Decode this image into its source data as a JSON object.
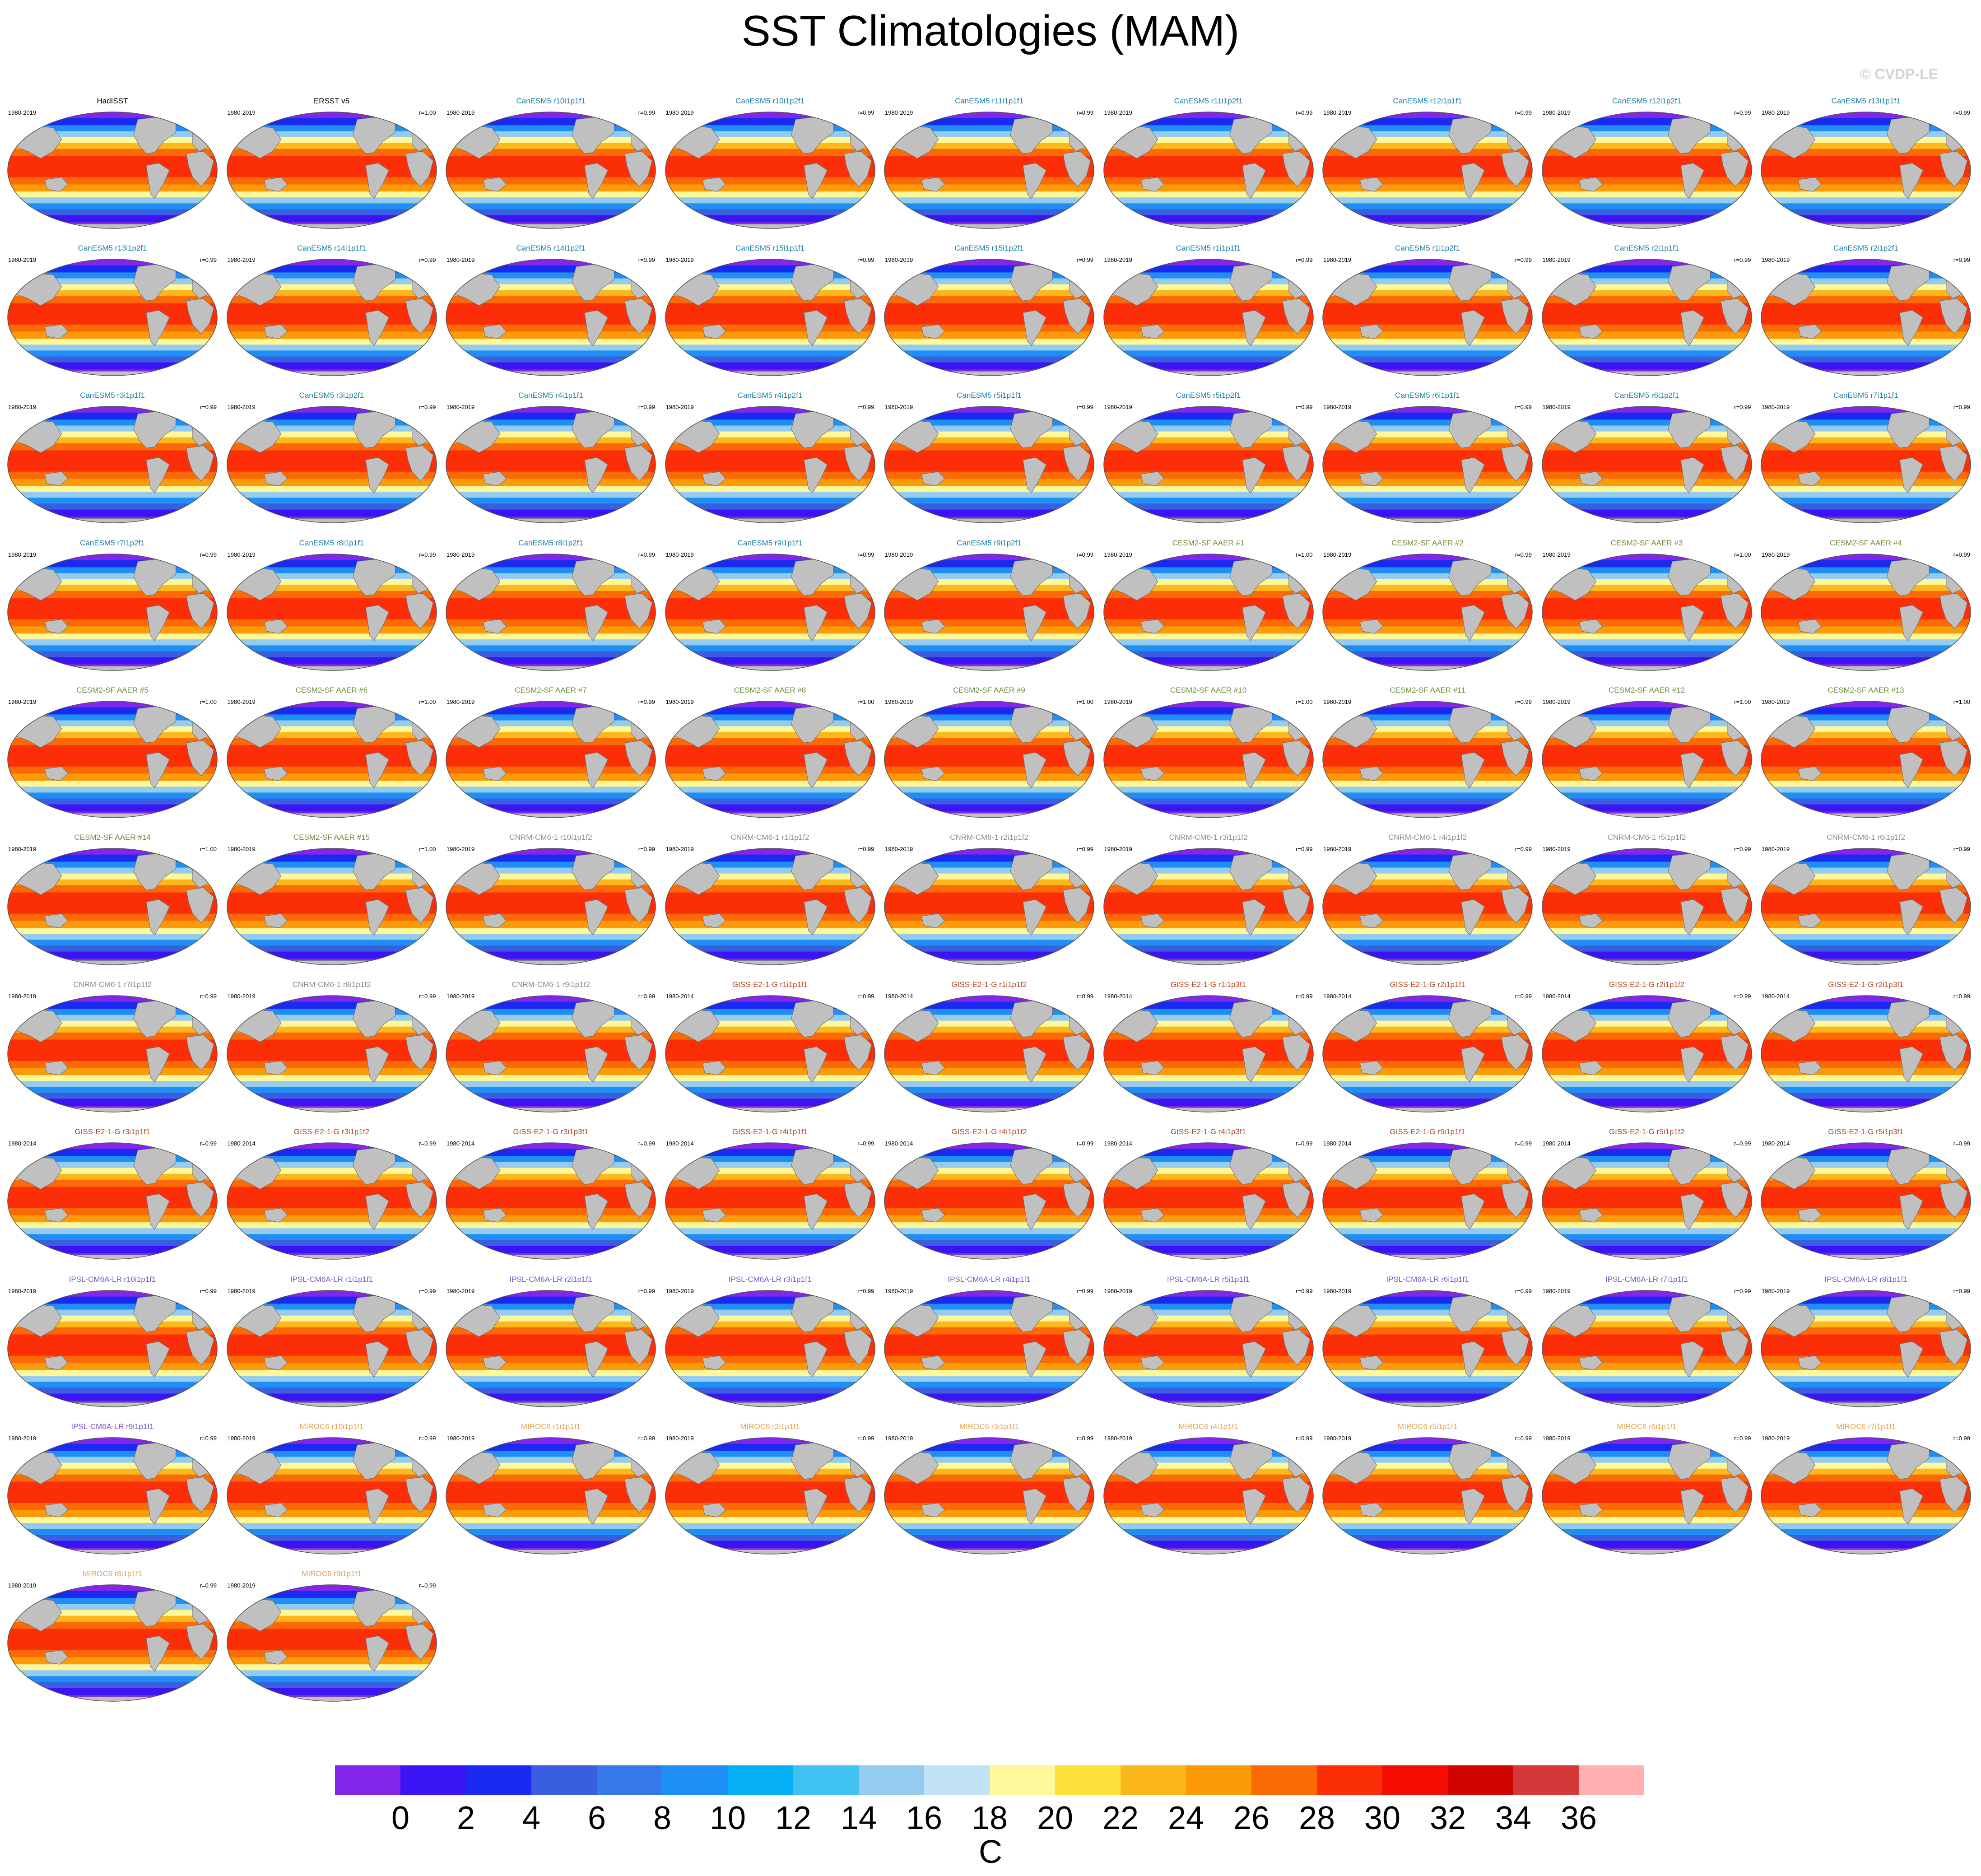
{
  "title": "SST Climatologies (MAM)",
  "watermark": "© CVDP-LE",
  "colors": {
    "CanESM5": "#1a7fa8",
    "CESM2-SF AAER": "#6b8e3a",
    "CNRM-CM6-1": "#8c8c8c",
    "GISS-E2-1-G": "#b24a24",
    "IPSL-CM6A-LR": "#7a55c8",
    "MIROC6": "#e3a35a",
    "obs": "#000000",
    "land": "#c0c0c0"
  },
  "chart_data": {
    "type": "heatmap",
    "variable": "SST",
    "season": "MAM",
    "colorbar": {
      "unit": "C",
      "levels": [
        0,
        2,
        4,
        6,
        8,
        10,
        12,
        14,
        16,
        18,
        20,
        22,
        24,
        26,
        28,
        30,
        32,
        34,
        36
      ],
      "tick_labels": [
        "0",
        "2",
        "4",
        "6",
        "8",
        "10",
        "12",
        "14",
        "16",
        "18",
        "20",
        "22",
        "24",
        "26",
        "28",
        "30",
        "32",
        "34",
        "36"
      ],
      "colors": [
        "#8226ea",
        "#3b14f5",
        "#1a2af0",
        "#3a5ee0",
        "#3579e8",
        "#1e90f5",
        "#05b0f5",
        "#40c2f2",
        "#94cbee",
        "#c2e3f5",
        "#fff89a",
        "#fde03a",
        "#fcb81a",
        "#fc9a08",
        "#fc6a06",
        "#fc2e08",
        "#f50c00",
        "#d20400",
        "#d53838",
        "#ffb0b0"
      ]
    },
    "panels": [
      {
        "name": "HadISST",
        "period": "1980-2019",
        "r": "",
        "group": "obs"
      },
      {
        "name": "ERSST v5",
        "period": "1980-2019",
        "r": "r=1.00",
        "group": "obs"
      },
      {
        "name": "CanESM5 r10i1p1f1",
        "period": "1980-2019",
        "r": "r=0.99",
        "group": "CanESM5"
      },
      {
        "name": "CanESM5 r10i1p2f1",
        "period": "1980-2019",
        "r": "r=0.99",
        "group": "CanESM5"
      },
      {
        "name": "CanESM5 r11i1p1f1",
        "period": "1980-2019",
        "r": "r=0.99",
        "group": "CanESM5"
      },
      {
        "name": "CanESM5 r11i1p2f1",
        "period": "1980-2019",
        "r": "r=0.99",
        "group": "CanESM5"
      },
      {
        "name": "CanESM5 r12i1p1f1",
        "period": "1980-2019",
        "r": "r=0.99",
        "group": "CanESM5"
      },
      {
        "name": "CanESM5 r12i1p2f1",
        "period": "1980-2019",
        "r": "r=0.99",
        "group": "CanESM5"
      },
      {
        "name": "CanESM5 r13i1p1f1",
        "period": "1980-2019",
        "r": "r=0.99",
        "group": "CanESM5"
      },
      {
        "name": "CanESM5 r13i1p2f1",
        "period": "1980-2019",
        "r": "r=0.99",
        "group": "CanESM5"
      },
      {
        "name": "CanESM5 r14i1p1f1",
        "period": "1980-2019",
        "r": "r=0.99",
        "group": "CanESM5"
      },
      {
        "name": "CanESM5 r14i1p2f1",
        "period": "1980-2019",
        "r": "r=0.99",
        "group": "CanESM5"
      },
      {
        "name": "CanESM5 r15i1p1f1",
        "period": "1980-2019",
        "r": "r=0.99",
        "group": "CanESM5"
      },
      {
        "name": "CanESM5 r15i1p2f1",
        "period": "1980-2019",
        "r": "r=0.99",
        "group": "CanESM5"
      },
      {
        "name": "CanESM5 r1i1p1f1",
        "period": "1980-2019",
        "r": "r=0.99",
        "group": "CanESM5"
      },
      {
        "name": "CanESM5 r1i1p2f1",
        "period": "1980-2019",
        "r": "r=0.99",
        "group": "CanESM5"
      },
      {
        "name": "CanESM5 r2i1p1f1",
        "period": "1980-2019",
        "r": "r=0.99",
        "group": "CanESM5"
      },
      {
        "name": "CanESM5 r2i1p2f1",
        "period": "1980-2019",
        "r": "r=0.99",
        "group": "CanESM5"
      },
      {
        "name": "CanESM5 r3i1p1f1",
        "period": "1980-2019",
        "r": "r=0.99",
        "group": "CanESM5"
      },
      {
        "name": "CanESM5 r3i1p2f1",
        "period": "1980-2019",
        "r": "r=0.99",
        "group": "CanESM5"
      },
      {
        "name": "CanESM5 r4i1p1f1",
        "period": "1980-2019",
        "r": "r=0.99",
        "group": "CanESM5"
      },
      {
        "name": "CanESM5 r4i1p2f1",
        "period": "1980-2019",
        "r": "r=0.99",
        "group": "CanESM5"
      },
      {
        "name": "CanESM5 r5i1p1f1",
        "period": "1980-2019",
        "r": "r=0.99",
        "group": "CanESM5"
      },
      {
        "name": "CanESM5 r5i1p2f1",
        "period": "1980-2019",
        "r": "r=0.99",
        "group": "CanESM5"
      },
      {
        "name": "CanESM5 r6i1p1f1",
        "period": "1980-2019",
        "r": "r=0.99",
        "group": "CanESM5"
      },
      {
        "name": "CanESM5 r6i1p2f1",
        "period": "1980-2019",
        "r": "r=0.99",
        "group": "CanESM5"
      },
      {
        "name": "CanESM5 r7i1p1f1",
        "period": "1980-2019",
        "r": "r=0.99",
        "group": "CanESM5"
      },
      {
        "name": "CanESM5 r7i1p2f1",
        "period": "1980-2019",
        "r": "r=0.99",
        "group": "CanESM5"
      },
      {
        "name": "CanESM5 r8i1p1f1",
        "period": "1980-2019",
        "r": "r=0.99",
        "group": "CanESM5"
      },
      {
        "name": "CanESM5 r8i1p2f1",
        "period": "1980-2019",
        "r": "r=0.99",
        "group": "CanESM5"
      },
      {
        "name": "CanESM5 r9i1p1f1",
        "period": "1980-2019",
        "r": "r=0.99",
        "group": "CanESM5"
      },
      {
        "name": "CanESM5 r9i1p2f1",
        "period": "1980-2019",
        "r": "r=0.99",
        "group": "CanESM5"
      },
      {
        "name": "CESM2-SF AAER #1",
        "period": "1980-2019",
        "r": "r=1.00",
        "group": "CESM2-SF AAER"
      },
      {
        "name": "CESM2-SF AAER #2",
        "period": "1980-2019",
        "r": "r=0.99",
        "group": "CESM2-SF AAER"
      },
      {
        "name": "CESM2-SF AAER #3",
        "period": "1980-2019",
        "r": "r=1.00",
        "group": "CESM2-SF AAER"
      },
      {
        "name": "CESM2-SF AAER #4",
        "period": "1980-2019",
        "r": "r=0.99",
        "group": "CESM2-SF AAER"
      },
      {
        "name": "CESM2-SF AAER #5",
        "period": "1980-2019",
        "r": "r=1.00",
        "group": "CESM2-SF AAER"
      },
      {
        "name": "CESM2-SF AAER #6",
        "period": "1980-2019",
        "r": "r=1.00",
        "group": "CESM2-SF AAER"
      },
      {
        "name": "CESM2-SF AAER #7",
        "period": "1980-2019",
        "r": "r=0.99",
        "group": "CESM2-SF AAER"
      },
      {
        "name": "CESM2-SF AAER #8",
        "period": "1980-2019",
        "r": "r=1.00",
        "group": "CESM2-SF AAER"
      },
      {
        "name": "CESM2-SF AAER #9",
        "period": "1980-2019",
        "r": "r=1.00",
        "group": "CESM2-SF AAER"
      },
      {
        "name": "CESM2-SF AAER #10",
        "period": "1980-2019",
        "r": "r=1.00",
        "group": "CESM2-SF AAER"
      },
      {
        "name": "CESM2-SF AAER #11",
        "period": "1980-2019",
        "r": "r=0.99",
        "group": "CESM2-SF AAER"
      },
      {
        "name": "CESM2-SF AAER #12",
        "period": "1980-2019",
        "r": "r=1.00",
        "group": "CESM2-SF AAER"
      },
      {
        "name": "CESM2-SF AAER #13",
        "period": "1980-2019",
        "r": "r=1.00",
        "group": "CESM2-SF AAER"
      },
      {
        "name": "CESM2-SF AAER #14",
        "period": "1980-2019",
        "r": "r=1.00",
        "group": "CESM2-SF AAER"
      },
      {
        "name": "CESM2-SF AAER #15",
        "period": "1980-2019",
        "r": "r=1.00",
        "group": "CESM2-SF AAER"
      },
      {
        "name": "CNRM-CM6-1 r10i1p1f2",
        "period": "1980-2019",
        "r": "r=0.99",
        "group": "CNRM-CM6-1"
      },
      {
        "name": "CNRM-CM6-1 r1i1p1f2",
        "period": "1980-2019",
        "r": "r=0.99",
        "group": "CNRM-CM6-1"
      },
      {
        "name": "CNRM-CM6-1 r2i1p1f2",
        "period": "1980-2019",
        "r": "r=0.99",
        "group": "CNRM-CM6-1"
      },
      {
        "name": "CNRM-CM6-1 r3i1p1f2",
        "period": "1980-2019",
        "r": "r=0.99",
        "group": "CNRM-CM6-1"
      },
      {
        "name": "CNRM-CM6-1 r4i1p1f2",
        "period": "1980-2019",
        "r": "r=0.99",
        "group": "CNRM-CM6-1"
      },
      {
        "name": "CNRM-CM6-1 r5i1p1f2",
        "period": "1980-2019",
        "r": "r=0.99",
        "group": "CNRM-CM6-1"
      },
      {
        "name": "CNRM-CM6-1 r6i1p1f2",
        "period": "1980-2019",
        "r": "r=0.99",
        "group": "CNRM-CM6-1"
      },
      {
        "name": "CNRM-CM6-1 r7i1p1f2",
        "period": "1980-2019",
        "r": "r=0.99",
        "group": "CNRM-CM6-1"
      },
      {
        "name": "CNRM-CM6-1 r8i1p1f2",
        "period": "1980-2019",
        "r": "r=0.99",
        "group": "CNRM-CM6-1"
      },
      {
        "name": "CNRM-CM6-1 r9i1p1f2",
        "period": "1980-2019",
        "r": "r=0.99",
        "group": "CNRM-CM6-1"
      },
      {
        "name": "GISS-E2-1-G r1i1p1f1",
        "period": "1980-2014",
        "r": "r=0.99",
        "group": "GISS-E2-1-G"
      },
      {
        "name": "GISS-E2-1-G r1i1p1f2",
        "period": "1980-2014",
        "r": "r=0.99",
        "group": "GISS-E2-1-G"
      },
      {
        "name": "GISS-E2-1-G r1i1p3f1",
        "period": "1980-2014",
        "r": "r=0.99",
        "group": "GISS-E2-1-G"
      },
      {
        "name": "GISS-E2-1-G r2i1p1f1",
        "period": "1980-2014",
        "r": "r=0.99",
        "group": "GISS-E2-1-G"
      },
      {
        "name": "GISS-E2-1-G r2i1p1f2",
        "period": "1980-2014",
        "r": "r=0.99",
        "group": "GISS-E2-1-G"
      },
      {
        "name": "GISS-E2-1-G r2i1p3f1",
        "period": "1980-2014",
        "r": "r=0.99",
        "group": "GISS-E2-1-G"
      },
      {
        "name": "GISS-E2-1-G r3i1p1f1",
        "period": "1980-2014",
        "r": "r=0.99",
        "group": "GISS-E2-1-G"
      },
      {
        "name": "GISS-E2-1-G r3i1p1f2",
        "period": "1980-2014",
        "r": "r=0.99",
        "group": "GISS-E2-1-G"
      },
      {
        "name": "GISS-E2-1-G r3i1p3f1",
        "period": "1980-2014",
        "r": "r=0.99",
        "group": "GISS-E2-1-G"
      },
      {
        "name": "GISS-E2-1-G r4i1p1f1",
        "period": "1980-2014",
        "r": "r=0.99",
        "group": "GISS-E2-1-G"
      },
      {
        "name": "GISS-E2-1-G r4i1p1f2",
        "period": "1980-2014",
        "r": "r=0.99",
        "group": "GISS-E2-1-G"
      },
      {
        "name": "GISS-E2-1-G r4i1p3f1",
        "period": "1980-2014",
        "r": "r=0.99",
        "group": "GISS-E2-1-G"
      },
      {
        "name": "GISS-E2-1-G r5i1p1f1",
        "period": "1980-2014",
        "r": "r=0.99",
        "group": "GISS-E2-1-G"
      },
      {
        "name": "GISS-E2-1-G r5i1p1f2",
        "period": "1980-2014",
        "r": "r=0.99",
        "group": "GISS-E2-1-G"
      },
      {
        "name": "GISS-E2-1-G r5i1p3f1",
        "period": "1980-2014",
        "r": "r=0.99",
        "group": "GISS-E2-1-G"
      },
      {
        "name": "IPSL-CM6A-LR r10i1p1f1",
        "period": "1980-2019",
        "r": "r=0.99",
        "group": "IPSL-CM6A-LR"
      },
      {
        "name": "IPSL-CM6A-LR r1i1p1f1",
        "period": "1980-2019",
        "r": "r=0.99",
        "group": "IPSL-CM6A-LR"
      },
      {
        "name": "IPSL-CM6A-LR r2i1p1f1",
        "period": "1980-2019",
        "r": "r=0.99",
        "group": "IPSL-CM6A-LR"
      },
      {
        "name": "IPSL-CM6A-LR r3i1p1f1",
        "period": "1980-2019",
        "r": "r=0.99",
        "group": "IPSL-CM6A-LR"
      },
      {
        "name": "IPSL-CM6A-LR r4i1p1f1",
        "period": "1980-2019",
        "r": "r=0.99",
        "group": "IPSL-CM6A-LR"
      },
      {
        "name": "IPSL-CM6A-LR r5i1p1f1",
        "period": "1980-2019",
        "r": "r=0.99",
        "group": "IPSL-CM6A-LR"
      },
      {
        "name": "IPSL-CM6A-LR r6i1p1f1",
        "period": "1980-2019",
        "r": "r=0.99",
        "group": "IPSL-CM6A-LR"
      },
      {
        "name": "IPSL-CM6A-LR r7i1p1f1",
        "period": "1980-2019",
        "r": "r=0.99",
        "group": "IPSL-CM6A-LR"
      },
      {
        "name": "IPSL-CM6A-LR r8i1p1f1",
        "period": "1980-2019",
        "r": "r=0.99",
        "group": "IPSL-CM6A-LR"
      },
      {
        "name": "IPSL-CM6A-LR r9i1p1f1",
        "period": "1980-2019",
        "r": "r=0.99",
        "group": "IPSL-CM6A-LR"
      },
      {
        "name": "MIROC6 r10i1p1f1",
        "period": "1980-2019",
        "r": "r=0.99",
        "group": "MIROC6"
      },
      {
        "name": "MIROC6 r1i1p1f1",
        "period": "1980-2019",
        "r": "r=0.99",
        "group": "MIROC6"
      },
      {
        "name": "MIROC6 r2i1p1f1",
        "period": "1980-2019",
        "r": "r=0.99",
        "group": "MIROC6"
      },
      {
        "name": "MIROC6 r3i1p1f1",
        "period": "1980-2019",
        "r": "r=0.99",
        "group": "MIROC6"
      },
      {
        "name": "MIROC6 r4i1p1f1",
        "period": "1980-2019",
        "r": "r=0.99",
        "group": "MIROC6"
      },
      {
        "name": "MIROC6 r5i1p1f1",
        "period": "1980-2019",
        "r": "r=0.99",
        "group": "MIROC6"
      },
      {
        "name": "MIROC6 r6i1p1f1",
        "period": "1980-2019",
        "r": "r=0.99",
        "group": "MIROC6"
      },
      {
        "name": "MIROC6 r7i1p1f1",
        "period": "1980-2019",
        "r": "r=0.99",
        "group": "MIROC6"
      },
      {
        "name": "MIROC6 r8i1p1f1",
        "period": "1980-2019",
        "r": "r=0.99",
        "group": "MIROC6"
      },
      {
        "name": "MIROC6 r9i1p1f1",
        "period": "1980-2019",
        "r": "r=0.99",
        "group": "MIROC6"
      }
    ]
  }
}
